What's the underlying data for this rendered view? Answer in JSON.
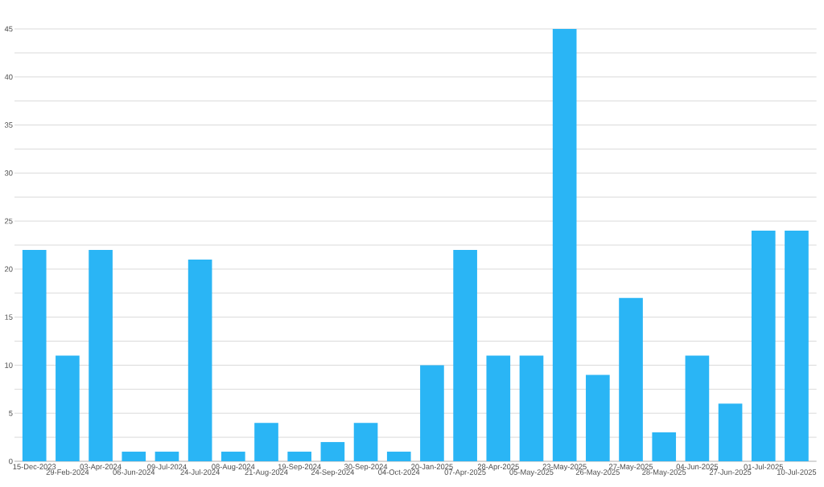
{
  "chart_data": {
    "type": "bar",
    "categories": [
      "15-Dec-2023",
      "29-Feb-2024",
      "03-Apr-2024",
      "06-Jun-2024",
      "09-Jul-2024",
      "24-Jul-2024",
      "08-Aug-2024",
      "21-Aug-2024",
      "19-Sep-2024",
      "24-Sep-2024",
      "30-Sep-2024",
      "04-Oct-2024",
      "20-Jan-2025",
      "07-Apr-2025",
      "28-Apr-2025",
      "05-May-2025",
      "23-May-2025",
      "26-May-2025",
      "27-May-2025",
      "28-May-2025",
      "04-Jun-2025",
      "27-Jun-2025",
      "01-Jul-2025",
      "10-Jul-2025"
    ],
    "values": [
      22,
      11,
      22,
      1,
      1,
      21,
      1,
      4,
      1,
      2,
      4,
      1,
      10,
      22,
      11,
      11,
      45,
      9,
      17,
      3,
      11,
      6,
      24,
      24
    ],
    "color": "#2ab5f5",
    "ylim": [
      0,
      45
    ],
    "yticks": [
      0,
      {
        "value": 2.5,
        "label": null
      },
      5,
      {
        "value": 7.5,
        "label": null
      },
      10,
      {
        "value": 12.5,
        "label": null
      },
      15,
      {
        "value": 17.5,
        "label": null
      },
      20,
      {
        "value": 22.5,
        "label": null
      },
      25,
      {
        "value": 27.5,
        "label": null
      },
      30,
      {
        "value": 32.5,
        "label": null
      },
      35,
      {
        "value": 37.5,
        "label": null
      },
      40,
      {
        "value": 42.5,
        "label": null
      },
      45
    ],
    "grid": "y"
  }
}
